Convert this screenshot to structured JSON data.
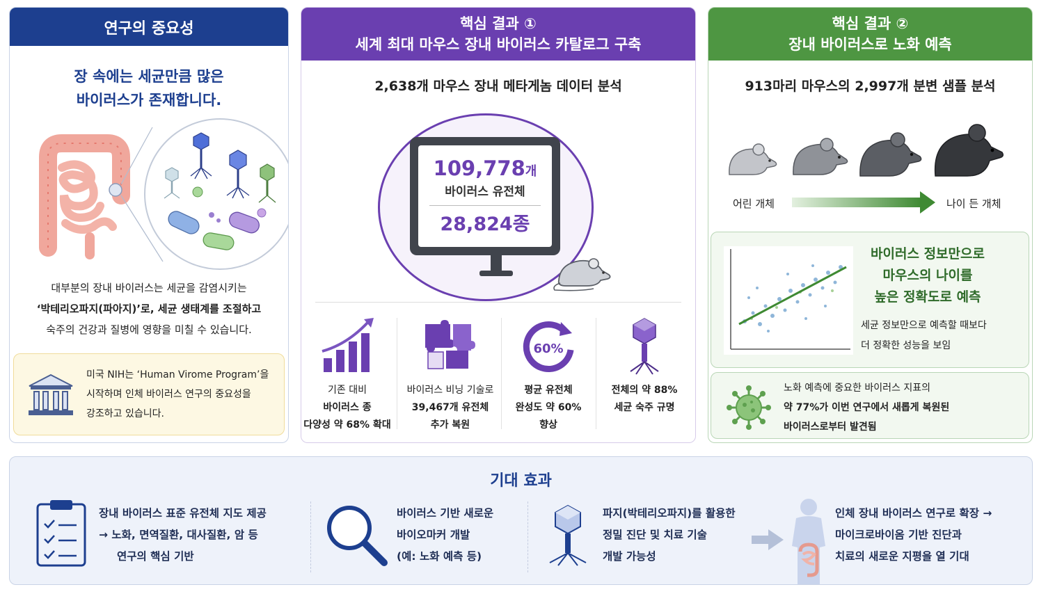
{
  "importance": {
    "header": "연구의 중요성",
    "subtitle_line1": "장 속에는 세균만큼 많은",
    "subtitle_line2": "바이러스가 존재합니다.",
    "desc_line1": "대부분의 장내 바이러스는 세균을 감염시키는",
    "desc_line2": "‘박테리오파지(파아지)’로, 세균 생태계를 조절하고",
    "desc_line3": "숙주의 건강과 질병에 영향을 미칠 수 있습니다.",
    "nih_line1": "미국 NIH는 ‘Human Virome Program’을",
    "nih_line2": "시작하며 인체 바이러스 연구의 중요성을",
    "nih_line3": "강조하고 있습니다."
  },
  "result1": {
    "header_line1": "핵심 결과 ①",
    "header_line2": "세계 최대 마우스 장내 바이러스 카탈로그 구축",
    "subtitle": "2,638개 마우스 장내 메타게놈 데이터 분석",
    "genome_count": "109,778",
    "genome_unit": "개",
    "genome_label": "바이러스 유전체",
    "species_count": "28,824종",
    "stats": [
      {
        "line1": "기존 대비",
        "line2": "바이러스 종",
        "line3": "다양성 약 68% 확대"
      },
      {
        "line1": "바이러스 비닝 기술로",
        "line2": "39,467개 유전체",
        "line3": "추가 복원"
      },
      {
        "badge": "60%",
        "line1": "평균 유전체",
        "line2": "완성도 약 60%",
        "line3": "향상"
      },
      {
        "line1": "전체의 약 88%",
        "line2": "세균 숙주 규명"
      }
    ]
  },
  "result2": {
    "header_line1": "핵심 결과 ②",
    "header_line2": "장내 바이러스로 노화 예측",
    "subtitle": "913마리 마우스의 2,997개 분변 샘플 분석",
    "young_label": "어린 개체",
    "old_label": "나이 든 개체",
    "pred_line1": "바이러스 정보만으로",
    "pred_line2": "마우스의 나이를",
    "pred_line3": "높은 정확도로 예측",
    "pred_desc_line1": "세균 정보만으로 예측할 때보다",
    "pred_desc_line2": "더 정확한 성능을 보임",
    "marker_line1": "노화 예측에 중요한 바이러스 지표의",
    "marker_line2": "약 77%가 이번 연구에서 새롭게 복원된",
    "marker_line3": "바이러스로부터 발견됨"
  },
  "effects": {
    "title": "기대 효과",
    "items": [
      {
        "line1": "장내 바이러스 표준 유전체 지도 제공",
        "line2": "→ 노화, 면역질환, 대사질환, 암 등",
        "line3": "연구의 핵심 기반"
      },
      {
        "line1": "바이러스 기반 새로운",
        "line2": "바이오마커 개발",
        "line3": "(예: 노화 예측 등)"
      },
      {
        "line1": "파지(박테리오파지)를 활용한",
        "line2": "정밀 진단 및 치료 기술",
        "line3": "개발 가능성"
      },
      {
        "line1": "인체 장내 바이러스 연구로 확장 →",
        "line2": "마이크로바이옴 기반 진단과",
        "line3": "치료의 새로운 지평을 열 기대"
      }
    ]
  },
  "colors": {
    "navy": "#1d3f8f",
    "purple": "#6a3fb0",
    "green": "#4e9642",
    "yellow_box": "#fdf8e3"
  },
  "icons": [
    "intestine-icon",
    "phage-icon",
    "bacteria-icon",
    "bank-icon",
    "monitor-icon",
    "mouse-icon",
    "growth-chart-icon",
    "puzzle-icon",
    "refresh-icon",
    "virus-icon",
    "scatter-plot-icon",
    "clipboard-icon",
    "magnifier-icon",
    "human-body-icon"
  ]
}
